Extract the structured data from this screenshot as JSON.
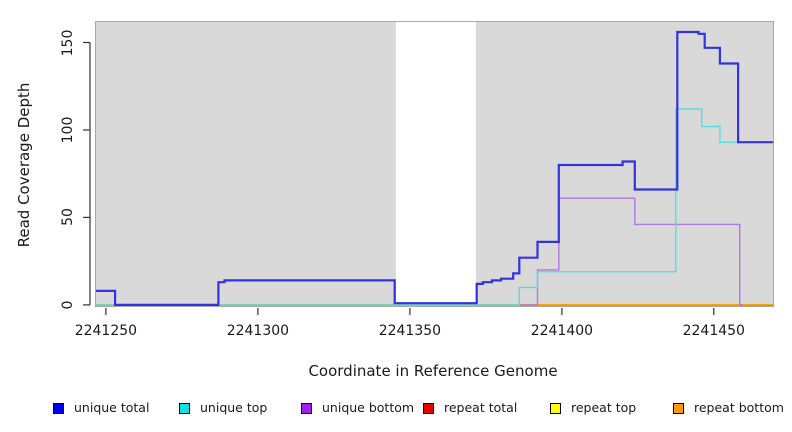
{
  "chart_data": {
    "type": "line",
    "subtype": "step-coverage",
    "title": "",
    "xlabel": "Coordinate in Reference Genome",
    "ylabel": "Read Coverage Depth",
    "x_ticks": [
      2241250,
      2241300,
      2241350,
      2241400,
      2241450
    ],
    "y_ticks": [
      0,
      50,
      100,
      150
    ],
    "xlim": [
      2241246.4,
      2241469.8
    ],
    "ylim": [
      0,
      162.3
    ],
    "grid": false,
    "legend_position": "bottom",
    "panel": {
      "bg": "#d9d9d9",
      "border": "#a8a8a8"
    },
    "gap_region": {
      "x_start": 2241345.4,
      "x_end": 2241371.7,
      "color": "#ffffff"
    },
    "legend": [
      {
        "label": "unique total",
        "swatch_color": "#0000ee"
      },
      {
        "label": "unique top",
        "swatch_color": "#00e5e5"
      },
      {
        "label": "unique bottom",
        "swatch_color": "#a020f0"
      },
      {
        "label": "repeat total",
        "swatch_color": "#e60000"
      },
      {
        "label": "repeat top",
        "swatch_color": "#ffff00"
      },
      {
        "label": "repeat bottom",
        "swatch_color": "#ff9900"
      }
    ],
    "series": [
      {
        "name": "repeat total",
        "line_color": "#e60000",
        "line_width": 1.6,
        "steps": [
          [
            2241246.4,
            0
          ]
        ],
        "x_end": 2241469.8
      },
      {
        "name": "repeat top",
        "line_color": "#ffff00",
        "line_width": 1.6,
        "steps": [
          [
            2241246.4,
            0
          ]
        ],
        "x_end": 2241469.8
      },
      {
        "name": "repeat bottom",
        "line_color": "#ff9900",
        "line_width": 1.6,
        "steps": [
          [
            2241246.4,
            0
          ]
        ],
        "x_end": 2241469.8
      },
      {
        "name": "unique bottom",
        "line_color": "#b077e0",
        "line_width": 1.4,
        "steps": [
          [
            2241386,
            0
          ],
          [
            2241392,
            20
          ],
          [
            2241399,
            61
          ],
          [
            2241424,
            46
          ],
          [
            2241458.5,
            0
          ]
        ],
        "x_end": 2241459.5
      },
      {
        "name": "unique top",
        "line_color": "#4ee2e2",
        "line_width": 1.4,
        "steps": [
          [
            2241246.4,
            0
          ],
          [
            2241386,
            10
          ],
          [
            2241392,
            19
          ],
          [
            2241437.5,
            112
          ],
          [
            2241446,
            102
          ],
          [
            2241452,
            93
          ]
        ],
        "x_end": 2241469.8
      },
      {
        "name": "unique total",
        "line_color": "#3232e0",
        "line_width": 2.2,
        "steps": [
          [
            2241246.4,
            8
          ],
          [
            2241253,
            0
          ],
          [
            2241287,
            13
          ],
          [
            2241289,
            14
          ],
          [
            2241345,
            1
          ],
          [
            2241372,
            12
          ],
          [
            2241374,
            13
          ],
          [
            2241377,
            14
          ],
          [
            2241380,
            15
          ],
          [
            2241384,
            18
          ],
          [
            2241386,
            27
          ],
          [
            2241392,
            36
          ],
          [
            2241399,
            80
          ],
          [
            2241420,
            82
          ],
          [
            2241424,
            66
          ],
          [
            2241438,
            156
          ],
          [
            2241445,
            155
          ],
          [
            2241447,
            147
          ],
          [
            2241452,
            138
          ],
          [
            2241458,
            93
          ]
        ],
        "x_end": 2241469.8
      }
    ],
    "baseline_segments": [
      {
        "color": "#7fca7f",
        "y": 0,
        "x_start": 2241246.4,
        "x_end": 2241386
      },
      {
        "color": "#ff8c1a",
        "y": 0,
        "x_start": 2241386,
        "x_end": 2241458.5
      },
      {
        "color": "#ec6eae",
        "y": 0,
        "x_start": 2241458.5,
        "x_end": 2241469.8
      }
    ]
  }
}
